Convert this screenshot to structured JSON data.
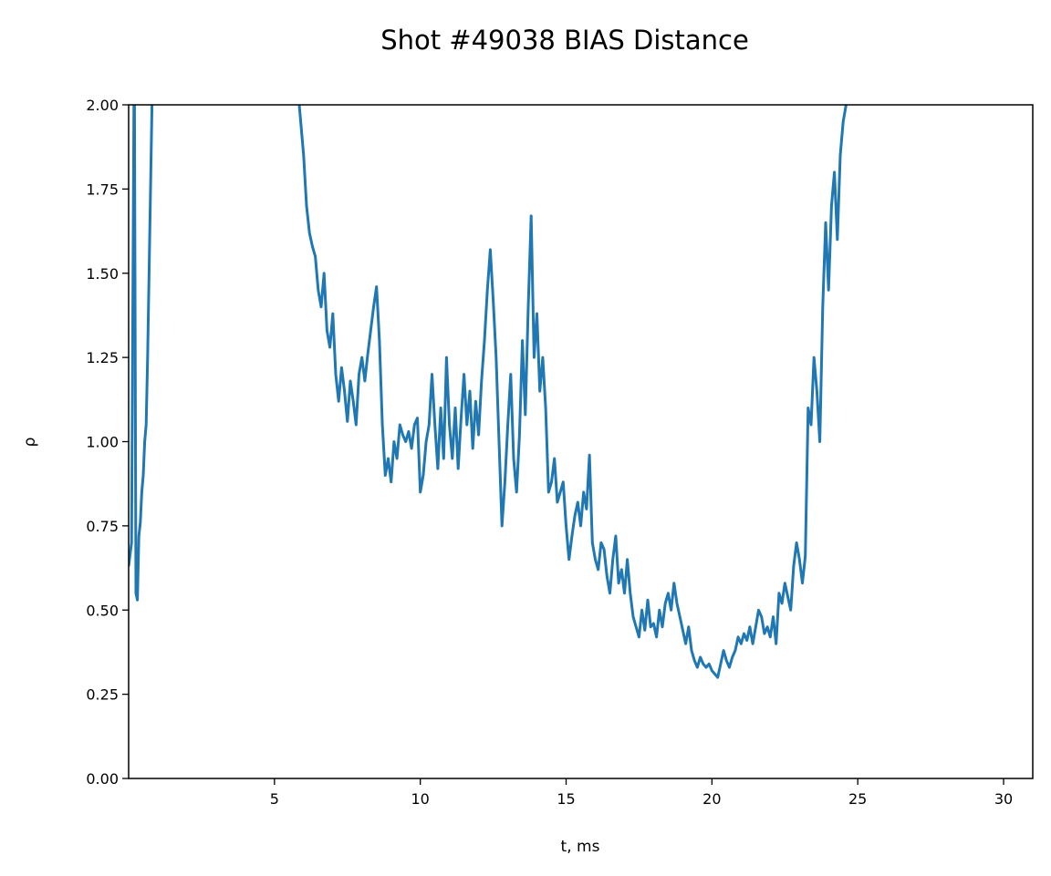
{
  "chart_data": {
    "type": "line",
    "title": "Shot #49038 BIAS Distance",
    "xlabel": "t, ms",
    "ylabel": "ρ",
    "xlim": [
      0,
      31
    ],
    "ylim": [
      0,
      2.0
    ],
    "xticks": [
      5,
      10,
      15,
      20,
      25,
      30
    ],
    "xtick_labels": [
      "5",
      "10",
      "15",
      "20",
      "25",
      "30"
    ],
    "yticks": [
      0,
      0.25,
      0.5,
      0.75,
      1.0,
      1.25,
      1.5,
      1.75,
      2.0
    ],
    "ytick_labels": [
      "0.00",
      "0.25",
      "0.50",
      "0.75",
      "1.00",
      "1.25",
      "1.50",
      "1.75",
      "2.00"
    ],
    "grid": false,
    "color": "#1f77b4",
    "series": [
      {
        "segments": [
          [
            [
              0.0,
              0.63
            ],
            [
              0.1,
              0.7
            ],
            [
              0.18,
              2.0
            ]
          ],
          [
            [
              0.2,
              2.0
            ],
            [
              0.25,
              0.55
            ],
            [
              0.3,
              0.53
            ],
            [
              0.35,
              0.72
            ],
            [
              0.4,
              0.76
            ],
            [
              0.45,
              0.85
            ],
            [
              0.5,
              0.9
            ],
            [
              0.55,
              1.0
            ],
            [
              0.6,
              1.05
            ],
            [
              0.65,
              1.25
            ],
            [
              0.7,
              1.5
            ],
            [
              0.75,
              1.75
            ],
            [
              0.8,
              2.0
            ]
          ],
          [
            [
              5.85,
              2.0
            ],
            [
              5.9,
              1.95
            ],
            [
              6.0,
              1.85
            ],
            [
              6.1,
              1.7
            ],
            [
              6.2,
              1.62
            ],
            [
              6.3,
              1.58
            ],
            [
              6.4,
              1.55
            ],
            [
              6.5,
              1.45
            ],
            [
              6.6,
              1.4
            ],
            [
              6.7,
              1.5
            ],
            [
              6.8,
              1.33
            ],
            [
              6.9,
              1.28
            ],
            [
              7.0,
              1.38
            ],
            [
              7.1,
              1.2
            ],
            [
              7.2,
              1.12
            ],
            [
              7.3,
              1.22
            ],
            [
              7.4,
              1.15
            ],
            [
              7.5,
              1.06
            ],
            [
              7.6,
              1.18
            ],
            [
              7.7,
              1.12
            ],
            [
              7.8,
              1.05
            ],
            [
              7.9,
              1.2
            ],
            [
              8.0,
              1.25
            ],
            [
              8.1,
              1.18
            ],
            [
              8.2,
              1.26
            ],
            [
              8.3,
              1.33
            ],
            [
              8.4,
              1.4
            ],
            [
              8.5,
              1.46
            ],
            [
              8.6,
              1.3
            ],
            [
              8.7,
              1.05
            ],
            [
              8.8,
              0.9
            ],
            [
              8.9,
              0.95
            ],
            [
              9.0,
              0.88
            ],
            [
              9.1,
              1.0
            ],
            [
              9.2,
              0.95
            ],
            [
              9.3,
              1.05
            ],
            [
              9.4,
              1.02
            ],
            [
              9.5,
              1.0
            ],
            [
              9.6,
              1.03
            ],
            [
              9.7,
              0.98
            ],
            [
              9.8,
              1.05
            ],
            [
              9.9,
              1.07
            ],
            [
              10.0,
              0.85
            ],
            [
              10.1,
              0.9
            ],
            [
              10.2,
              1.0
            ],
            [
              10.3,
              1.05
            ],
            [
              10.4,
              1.2
            ],
            [
              10.5,
              1.05
            ],
            [
              10.6,
              0.92
            ],
            [
              10.7,
              1.1
            ],
            [
              10.8,
              0.95
            ],
            [
              10.9,
              1.25
            ],
            [
              11.0,
              1.05
            ],
            [
              11.1,
              0.95
            ],
            [
              11.2,
              1.1
            ],
            [
              11.3,
              0.92
            ],
            [
              11.4,
              1.07
            ],
            [
              11.5,
              1.2
            ],
            [
              11.6,
              1.05
            ],
            [
              11.7,
              1.15
            ],
            [
              11.8,
              0.98
            ],
            [
              11.9,
              1.12
            ],
            [
              12.0,
              1.02
            ],
            [
              12.1,
              1.18
            ],
            [
              12.2,
              1.3
            ],
            [
              12.3,
              1.45
            ],
            [
              12.4,
              1.57
            ],
            [
              12.5,
              1.42
            ],
            [
              12.6,
              1.25
            ],
            [
              12.7,
              1.0
            ],
            [
              12.8,
              0.75
            ],
            [
              12.9,
              0.88
            ],
            [
              13.0,
              1.05
            ],
            [
              13.1,
              1.2
            ],
            [
              13.2,
              0.95
            ],
            [
              13.3,
              0.85
            ],
            [
              13.4,
              1.02
            ],
            [
              13.5,
              1.3
            ],
            [
              13.6,
              1.08
            ],
            [
              13.7,
              1.4
            ],
            [
              13.8,
              1.67
            ],
            [
              13.9,
              1.25
            ],
            [
              14.0,
              1.38
            ],
            [
              14.1,
              1.15
            ],
            [
              14.2,
              1.25
            ],
            [
              14.3,
              1.1
            ],
            [
              14.4,
              0.85
            ],
            [
              14.5,
              0.88
            ],
            [
              14.6,
              0.95
            ],
            [
              14.7,
              0.82
            ],
            [
              14.8,
              0.85
            ],
            [
              14.9,
              0.88
            ],
            [
              15.0,
              0.75
            ],
            [
              15.1,
              0.65
            ],
            [
              15.2,
              0.72
            ],
            [
              15.3,
              0.78
            ],
            [
              15.4,
              0.82
            ],
            [
              15.5,
              0.75
            ],
            [
              15.6,
              0.85
            ],
            [
              15.7,
              0.8
            ],
            [
              15.8,
              0.96
            ],
            [
              15.9,
              0.7
            ],
            [
              16.0,
              0.65
            ],
            [
              16.1,
              0.62
            ],
            [
              16.2,
              0.7
            ],
            [
              16.3,
              0.68
            ],
            [
              16.4,
              0.6
            ],
            [
              16.5,
              0.55
            ],
            [
              16.6,
              0.65
            ],
            [
              16.7,
              0.72
            ],
            [
              16.8,
              0.58
            ],
            [
              16.9,
              0.62
            ],
            [
              17.0,
              0.55
            ],
            [
              17.1,
              0.65
            ],
            [
              17.2,
              0.55
            ],
            [
              17.3,
              0.48
            ],
            [
              17.4,
              0.45
            ],
            [
              17.5,
              0.42
            ],
            [
              17.6,
              0.5
            ],
            [
              17.7,
              0.44
            ],
            [
              17.8,
              0.53
            ],
            [
              17.9,
              0.45
            ],
            [
              18.0,
              0.46
            ],
            [
              18.1,
              0.42
            ],
            [
              18.2,
              0.5
            ],
            [
              18.3,
              0.45
            ],
            [
              18.4,
              0.52
            ],
            [
              18.5,
              0.55
            ],
            [
              18.6,
              0.5
            ],
            [
              18.7,
              0.58
            ],
            [
              18.8,
              0.52
            ],
            [
              18.9,
              0.48
            ],
            [
              19.0,
              0.44
            ],
            [
              19.1,
              0.4
            ],
            [
              19.2,
              0.45
            ],
            [
              19.3,
              0.38
            ],
            [
              19.4,
              0.35
            ],
            [
              19.5,
              0.33
            ],
            [
              19.6,
              0.36
            ],
            [
              19.7,
              0.34
            ],
            [
              19.8,
              0.33
            ],
            [
              19.9,
              0.34
            ],
            [
              20.0,
              0.32
            ],
            [
              20.1,
              0.31
            ],
            [
              20.2,
              0.3
            ],
            [
              20.3,
              0.34
            ],
            [
              20.4,
              0.38
            ],
            [
              20.5,
              0.35
            ],
            [
              20.6,
              0.33
            ],
            [
              20.7,
              0.36
            ],
            [
              20.8,
              0.38
            ],
            [
              20.9,
              0.42
            ],
            [
              21.0,
              0.4
            ],
            [
              21.1,
              0.43
            ],
            [
              21.2,
              0.41
            ],
            [
              21.3,
              0.45
            ],
            [
              21.4,
              0.4
            ],
            [
              21.5,
              0.45
            ],
            [
              21.6,
              0.5
            ],
            [
              21.7,
              0.48
            ],
            [
              21.8,
              0.43
            ],
            [
              21.9,
              0.45
            ],
            [
              22.0,
              0.42
            ],
            [
              22.1,
              0.48
            ],
            [
              22.2,
              0.4
            ],
            [
              22.3,
              0.55
            ],
            [
              22.4,
              0.52
            ],
            [
              22.5,
              0.58
            ],
            [
              22.6,
              0.54
            ],
            [
              22.7,
              0.5
            ],
            [
              22.8,
              0.63
            ],
            [
              22.9,
              0.7
            ],
            [
              23.0,
              0.65
            ],
            [
              23.1,
              0.58
            ],
            [
              23.2,
              0.66
            ],
            [
              23.3,
              1.1
            ],
            [
              23.4,
              1.05
            ],
            [
              23.5,
              1.25
            ],
            [
              23.6,
              1.15
            ],
            [
              23.7,
              1.0
            ],
            [
              23.8,
              1.4
            ],
            [
              23.9,
              1.65
            ],
            [
              24.0,
              1.45
            ],
            [
              24.1,
              1.7
            ],
            [
              24.2,
              1.8
            ],
            [
              24.3,
              1.6
            ],
            [
              24.4,
              1.85
            ],
            [
              24.5,
              1.95
            ],
            [
              24.6,
              2.0
            ]
          ]
        ]
      }
    ]
  }
}
